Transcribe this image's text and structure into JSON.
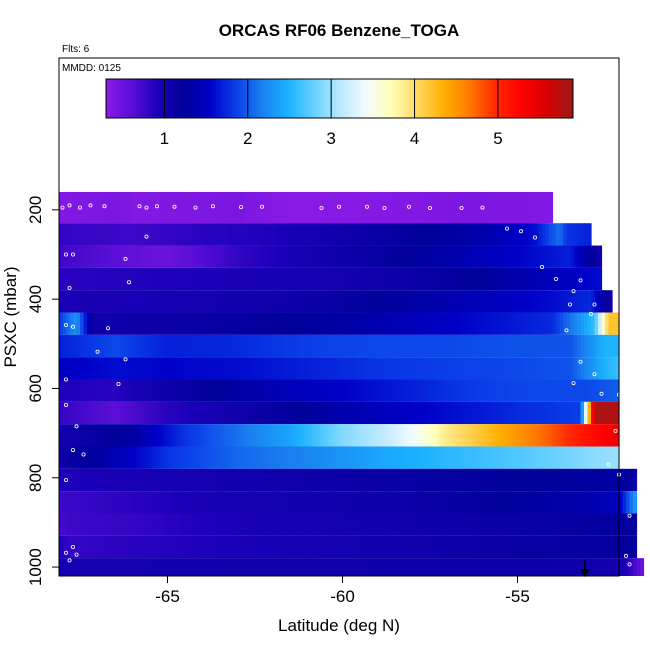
{
  "chart_data": {
    "type": "heatmap",
    "title": "ORCAS RF06 Benzene_TOGA",
    "note_flights": "Flts: 6",
    "note_date": "MMDD: 0125",
    "xlabel": "Latitude (deg N)",
    "ylabel": "PSXC (mbar)",
    "x_ticks": [
      -65,
      -60,
      -55
    ],
    "x_tick_labels": [
      "-65",
      "-60",
      "-55"
    ],
    "y_ticks": [
      200,
      400,
      600,
      800,
      1000
    ],
    "y_tick_labels": [
      "200",
      "400",
      "600",
      "800",
      "1000"
    ],
    "xlim": [
      -68.1,
      -52.1
    ],
    "ylim": [
      1020,
      -140
    ],
    "colorbar": {
      "min": 0.3,
      "max": 5.9,
      "ticks": [
        1,
        2,
        3,
        4,
        5
      ],
      "tick_labels": [
        "1",
        "2",
        "3",
        "4",
        "5"
      ],
      "colors": [
        "#8a1ae6",
        "#5a0ed6",
        "#1a00b8",
        "#00009a",
        "#0000c8",
        "#0a3fe8",
        "#1a7ff0",
        "#1ab0ff",
        "#66d0ff",
        "#b8e8ff",
        "#f2fbff",
        "#ffffb8",
        "#ffd860",
        "#ffb000",
        "#ff7a00",
        "#ff2a00",
        "#ff0000",
        "#d80000",
        "#9a1a1a"
      ]
    },
    "layers": [
      {
        "p_top": 160,
        "p_bottom": 230,
        "x_max": -54.0,
        "lat": [
          -68.1,
          -66.5,
          -65.8,
          -63.0,
          -61.5,
          -58.0,
          -56.5,
          -54.0
        ],
        "val": [
          0.35,
          0.4,
          0.35,
          0.4,
          0.3,
          0.35,
          0.4,
          0.35
        ]
      },
      {
        "p_top": 230,
        "p_bottom": 280,
        "x_max": -52.9,
        "lat": [
          -68.1,
          -66.0,
          -64.0,
          -62.0,
          -60.0,
          -58.0,
          -56.0,
          -54.5,
          -53.8,
          -53.6,
          -52.9
        ],
        "val": [
          0.8,
          0.75,
          0.85,
          0.9,
          1.05,
          1.2,
          1.35,
          1.6,
          2.1,
          1.8,
          1.7
        ]
      },
      {
        "p_top": 280,
        "p_bottom": 330,
        "x_max": -52.6,
        "lat": [
          -68.1,
          -66.5,
          -65.0,
          -63.0,
          -61.0,
          -59.0,
          -57.0,
          -55.0,
          -53.5,
          -52.6
        ],
        "val": [
          0.75,
          0.6,
          0.5,
          0.8,
          1.0,
          1.15,
          1.35,
          1.55,
          1.7,
          1.0
        ]
      },
      {
        "p_top": 330,
        "p_bottom": 380,
        "x_max": -52.6,
        "lat": [
          -68.1,
          -65.0,
          -62.0,
          -60.0,
          -58.0,
          -56.0,
          -54.0,
          -52.6
        ],
        "val": [
          0.85,
          0.9,
          0.95,
          1.0,
          1.1,
          1.25,
          1.45,
          1.6
        ]
      },
      {
        "p_top": 380,
        "p_bottom": 430,
        "x_max": -52.3,
        "lat": [
          -68.1,
          -66.0,
          -64.0,
          -62.0,
          -60.0,
          -58.0,
          -56.0,
          -54.0,
          -52.9,
          -52.3
        ],
        "val": [
          0.95,
          0.95,
          1.0,
          1.05,
          1.15,
          1.3,
          1.45,
          1.6,
          1.75,
          1.0
        ]
      },
      {
        "p_top": 430,
        "p_bottom": 480,
        "x_max": -52.1,
        "lat": [
          -68.1,
          -67.6,
          -67.1,
          -65.0,
          -62.0,
          -60.0,
          -58.0,
          -56.0,
          -54.0,
          -52.8,
          -52.4,
          -52.1
        ],
        "val": [
          1.8,
          2.3,
          1.05,
          1.1,
          1.2,
          1.3,
          1.45,
          1.6,
          1.75,
          2.6,
          4.2,
          4.2
        ]
      },
      {
        "p_top": 480,
        "p_bottom": 530,
        "x_max": -52.1,
        "lat": [
          -68.1,
          -66.5,
          -65.0,
          -63.0,
          -61.0,
          -59.0,
          -57.0,
          -55.0,
          -53.5,
          -52.5,
          -52.1
        ],
        "val": [
          1.7,
          1.9,
          1.7,
          1.75,
          1.85,
          1.9,
          1.9,
          1.95,
          1.95,
          2.5,
          2.5
        ]
      },
      {
        "p_top": 530,
        "p_bottom": 580,
        "x_max": -52.1,
        "lat": [
          -68.1,
          -66.5,
          -65.0,
          -63.0,
          -61.0,
          -59.0,
          -57.0,
          -55.0,
          -53.5,
          -52.5,
          -52.1
        ],
        "val": [
          1.5,
          1.6,
          1.55,
          1.6,
          1.7,
          1.8,
          1.85,
          1.9,
          1.95,
          2.5,
          2.6
        ]
      },
      {
        "p_top": 580,
        "p_bottom": 630,
        "x_max": -52.1,
        "lat": [
          -68.1,
          -66.5,
          -65.5,
          -64.0,
          -62.0,
          -60.0,
          -58.0,
          -56.0,
          -54.5,
          -53.0,
          -52.1
        ],
        "val": [
          0.9,
          0.85,
          1.0,
          1.2,
          1.4,
          1.55,
          1.7,
          1.85,
          1.9,
          1.9,
          2.0
        ]
      },
      {
        "p_top": 630,
        "p_bottom": 680,
        "x_max": -52.1,
        "lat": [
          -68.1,
          -66.5,
          -65.0,
          -63.0,
          -61.0,
          -59.0,
          -57.0,
          -55.0,
          -53.2,
          -52.8,
          -52.1
        ],
        "val": [
          0.8,
          0.6,
          0.85,
          1.05,
          1.25,
          1.45,
          1.6,
          1.75,
          1.85,
          5.8,
          5.8
        ]
      },
      {
        "p_top": 680,
        "p_bottom": 730,
        "x_max": -52.1,
        "lat": [
          -68.1,
          -66.0,
          -64.5,
          -63.0,
          -61.5,
          -60.0,
          -59.0,
          -58.0,
          -57.0,
          -56.0,
          -55.0,
          -54.0,
          -53.2,
          -52.1
        ],
        "val": [
          1.0,
          1.3,
          1.8,
          2.1,
          2.4,
          2.9,
          3.1,
          3.4,
          3.9,
          4.2,
          4.5,
          4.8,
          5.1,
          5.4
        ]
      },
      {
        "p_top": 730,
        "p_bottom": 780,
        "x_max": -52.1,
        "lat": [
          -68.1,
          -66.5,
          -65.0,
          -63.0,
          -61.0,
          -59.0,
          -57.0,
          -55.0,
          -53.5,
          -52.1
        ],
        "val": [
          1.05,
          1.4,
          1.8,
          2.05,
          2.2,
          2.4,
          2.55,
          2.7,
          2.85,
          3.0
        ]
      },
      {
        "p_top": 780,
        "p_bottom": 830,
        "x_max": -51.6,
        "lat": [
          -68.1,
          -66.0,
          -64.0,
          -62.0,
          -60.0,
          -58.0,
          -56.0,
          -54.0,
          -52.1,
          -51.6
        ],
        "val": [
          0.9,
          0.95,
          1.0,
          1.05,
          1.1,
          1.15,
          1.2,
          1.25,
          1.3,
          1.1
        ]
      },
      {
        "p_top": 830,
        "p_bottom": 880,
        "x_max": -51.6,
        "lat": [
          -68.1,
          -66.0,
          -64.0,
          -62.0,
          -60.0,
          -58.0,
          -56.0,
          -54.0,
          -52.1,
          -51.6
        ],
        "val": [
          0.75,
          0.85,
          0.95,
          1.0,
          1.05,
          1.1,
          1.2,
          1.3,
          1.45,
          2.4
        ]
      },
      {
        "p_top": 880,
        "p_bottom": 930,
        "x_max": -51.6,
        "lat": [
          -68.1,
          -67.8,
          -66.0,
          -64.0,
          -62.0,
          -60.0,
          -58.0,
          -56.0,
          -54.0,
          -51.6
        ],
        "val": [
          0.7,
          0.75,
          0.8,
          0.9,
          0.95,
          1.0,
          1.05,
          1.1,
          1.15,
          1.2
        ]
      },
      {
        "p_top": 930,
        "p_bottom": 980,
        "x_max": -51.6,
        "lat": [
          -68.1,
          -67.8,
          -66.0,
          -64.0,
          -62.0,
          -60.0,
          -58.0,
          -56.0,
          -54.0,
          -51.6
        ],
        "val": [
          0.9,
          0.8,
          0.85,
          0.9,
          0.95,
          1.0,
          1.05,
          1.1,
          1.15,
          1.2
        ]
      },
      {
        "p_top": 980,
        "p_bottom": 1030,
        "x_max": -51.4,
        "lat": [
          -68.1,
          -66.0,
          -63.0,
          -60.0,
          -57.0,
          -54.0,
          -52.0,
          -51.4
        ],
        "val": [
          1.0,
          1.0,
          1.05,
          1.05,
          1.1,
          1.1,
          1.0,
          0.5
        ]
      }
    ],
    "points": [
      {
        "lat": -68.0,
        "p": 195
      },
      {
        "lat": -67.8,
        "p": 190
      },
      {
        "lat": -67.5,
        "p": 195
      },
      {
        "lat": -67.2,
        "p": 190
      },
      {
        "lat": -66.8,
        "p": 192
      },
      {
        "lat": -65.8,
        "p": 192
      },
      {
        "lat": -65.6,
        "p": 195
      },
      {
        "lat": -65.3,
        "p": 192
      },
      {
        "lat": -64.8,
        "p": 193
      },
      {
        "lat": -64.2,
        "p": 195
      },
      {
        "lat": -63.7,
        "p": 192
      },
      {
        "lat": -62.9,
        "p": 194
      },
      {
        "lat": -62.3,
        "p": 193
      },
      {
        "lat": -60.6,
        "p": 196
      },
      {
        "lat": -60.1,
        "p": 193
      },
      {
        "lat": -59.3,
        "p": 193
      },
      {
        "lat": -58.8,
        "p": 196
      },
      {
        "lat": -58.1,
        "p": 193
      },
      {
        "lat": -57.5,
        "p": 196
      },
      {
        "lat": -56.6,
        "p": 196
      },
      {
        "lat": -56.0,
        "p": 195
      },
      {
        "lat": -55.3,
        "p": 242
      },
      {
        "lat": -54.9,
        "p": 248
      },
      {
        "lat": -54.5,
        "p": 262
      },
      {
        "lat": -65.6,
        "p": 260
      },
      {
        "lat": -67.9,
        "p": 300
      },
      {
        "lat": -67.7,
        "p": 300
      },
      {
        "lat": -66.2,
        "p": 310
      },
      {
        "lat": -54.3,
        "p": 328
      },
      {
        "lat": -53.9,
        "p": 355
      },
      {
        "lat": -53.2,
        "p": 358
      },
      {
        "lat": -66.1,
        "p": 362
      },
      {
        "lat": -53.4,
        "p": 382
      },
      {
        "lat": -67.8,
        "p": 375
      },
      {
        "lat": -53.5,
        "p": 412
      },
      {
        "lat": -52.8,
        "p": 412
      },
      {
        "lat": -52.9,
        "p": 433
      },
      {
        "lat": -67.9,
        "p": 458
      },
      {
        "lat": -67.7,
        "p": 462
      },
      {
        "lat": -66.7,
        "p": 465
      },
      {
        "lat": -53.6,
        "p": 470
      },
      {
        "lat": -67.0,
        "p": 518
      },
      {
        "lat": -66.2,
        "p": 535
      },
      {
        "lat": -53.2,
        "p": 540
      },
      {
        "lat": -52.8,
        "p": 568
      },
      {
        "lat": -53.4,
        "p": 588
      },
      {
        "lat": -67.9,
        "p": 580
      },
      {
        "lat": -66.4,
        "p": 590
      },
      {
        "lat": -52.6,
        "p": 612
      },
      {
        "lat": -52.1,
        "p": 614
      },
      {
        "lat": -67.9,
        "p": 637
      },
      {
        "lat": -67.6,
        "p": 685
      },
      {
        "lat": -52.2,
        "p": 695
      },
      {
        "lat": -67.7,
        "p": 738
      },
      {
        "lat": -67.4,
        "p": 748
      },
      {
        "lat": -52.4,
        "p": 770
      },
      {
        "lat": -52.1,
        "p": 793
      },
      {
        "lat": -67.9,
        "p": 805
      },
      {
        "lat": -51.8,
        "p": 885
      },
      {
        "lat": -67.7,
        "p": 955
      },
      {
        "lat": -67.9,
        "p": 968
      },
      {
        "lat": -67.6,
        "p": 972
      },
      {
        "lat": -67.8,
        "p": 985
      },
      {
        "lat": -51.9,
        "p": 975
      },
      {
        "lat": -51.8,
        "p": 994
      }
    ]
  }
}
